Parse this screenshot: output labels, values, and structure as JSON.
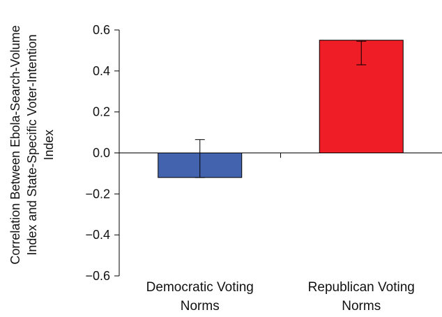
{
  "chart_data": {
    "type": "bar",
    "categories": [
      "Democratic Voting Norms",
      "Republican Voting Norms"
    ],
    "category_lines": [
      [
        "Democratic Voting",
        "Norms"
      ],
      [
        "Republican Voting",
        "Norms"
      ]
    ],
    "values": [
      -0.12,
      0.55
    ],
    "error_low": [
      -0.12,
      0.43
    ],
    "error_high": [
      0.065,
      0.545
    ],
    "colors": [
      "#4463ae",
      "#ee1d26"
    ],
    "ylabel": "Correlation Between Ebola-Search-Volume Index and State-Specific Voter-Intention Index",
    "ylabel_lines": [
      "Correlation Between Ebola-Search-Volume",
      "Index and State-Specific Voter-Intention",
      "Index"
    ],
    "ylim": [
      -0.6,
      0.6
    ],
    "yticks": [
      0.6,
      0.4,
      0.2,
      0.0,
      -0.2,
      -0.4,
      -0.6
    ],
    "ytick_labels": [
      "0.6",
      "0.4",
      "0.2",
      "0.0",
      "−0.2",
      "−0.4",
      "−0.6"
    ],
    "grid": false,
    "legend": "none"
  }
}
